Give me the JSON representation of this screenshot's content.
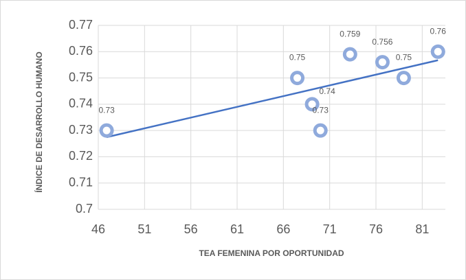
{
  "chart_data": {
    "type": "scatter",
    "x_label": "TEA FEMENINA POR OPORTUNIDAD",
    "y_label": "ÍNDICE DE DESARROLLO HUMANO",
    "x": [
      46.9,
      67.5,
      69.1,
      70.0,
      73.2,
      76.7,
      79.0,
      82.7
    ],
    "values": [
      0.73,
      0.75,
      0.74,
      0.73,
      0.759,
      0.756,
      0.75,
      0.76
    ],
    "color": "#8faadc",
    "trendline_color": "#4472c4",
    "xlim": [
      46,
      83.5
    ],
    "xticks": [
      46,
      51,
      56,
      61,
      66,
      71,
      76,
      81
    ],
    "ylim": [
      0.7,
      0.77
    ],
    "yticks": [
      0.7,
      0.71,
      0.72,
      0.73,
      0.74,
      0.75,
      0.76,
      0.77
    ],
    "grid": true
  }
}
